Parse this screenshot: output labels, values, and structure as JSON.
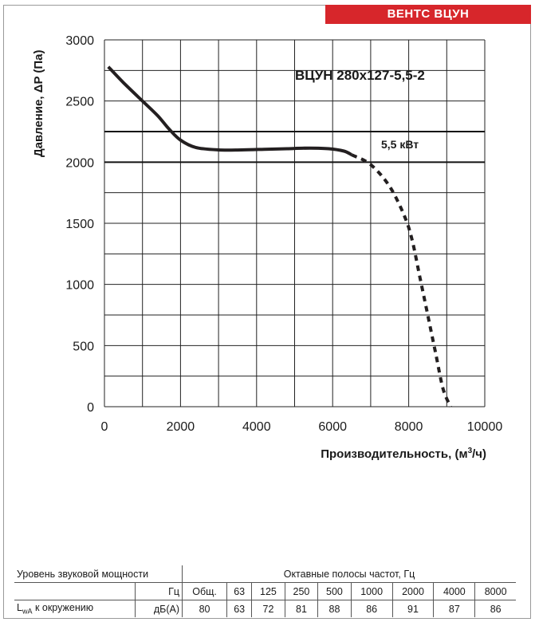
{
  "header": {
    "brand_label": "ВЕНТС ВЦУН"
  },
  "chart": {
    "model_label": "ВЦУН 280х127-5,5-2",
    "power_label": "5,5 кВт",
    "ylabel": "Давление, ΔP (Па)",
    "xlabel_main": "Производительность, (м",
    "xlabel_sup": "3",
    "xlabel_end": "/ч)"
  },
  "chart_data": {
    "type": "line",
    "title": "ВЦУН 280х127-5,5-2",
    "xlabel": "Производительность, (м3/ч)",
    "ylabel": "Давление, ΔP (Па)",
    "xlim": [
      0,
      10000
    ],
    "ylim": [
      0,
      3000
    ],
    "x_ticks": [
      0,
      2000,
      4000,
      6000,
      8000,
      10000
    ],
    "y_ticks": [
      0,
      500,
      1000,
      1500,
      2000,
      2500,
      3000
    ],
    "x_gridlines": [
      0,
      1000,
      2000,
      3000,
      4000,
      5000,
      6000,
      7000,
      8000,
      9000,
      10000
    ],
    "y_gridlines": [
      0,
      250,
      500,
      750,
      1000,
      1250,
      1500,
      1750,
      2000,
      2250,
      2500,
      2750,
      3000
    ],
    "grid": true,
    "power_band": {
      "y": [
        2000,
        2250
      ],
      "label": "5,5 кВт"
    },
    "series": [
      {
        "style": "solid",
        "x": [
          100,
          500,
          1000,
          1400,
          1700,
          2000,
          2400,
          3000,
          3600,
          4200,
          4800,
          5400,
          5900,
          6300,
          6500
        ],
        "y": [
          2780,
          2650,
          2500,
          2380,
          2270,
          2180,
          2120,
          2100,
          2100,
          2105,
          2110,
          2115,
          2110,
          2090,
          2060
        ]
      },
      {
        "style": "dashed",
        "x": [
          6500,
          7000,
          7500,
          7900,
          8100,
          8300,
          8500,
          8700,
          8900,
          9100
        ],
        "y": [
          2060,
          1980,
          1800,
          1550,
          1350,
          1050,
          750,
          450,
          150,
          0
        ]
      }
    ]
  },
  "sound_table": {
    "title": "Уровень звуковой мощности",
    "octave_title": "Октавные полосы частот, Гц",
    "hz_label": "Гц",
    "row_label_main": "L",
    "row_label_sub": "wA",
    "row_label_end": " к окружению",
    "unit": "дБ(A)",
    "headers": [
      "Общ.",
      "63",
      "125",
      "250",
      "500",
      "1000",
      "2000",
      "4000",
      "8000"
    ],
    "values": [
      "80",
      "63",
      "72",
      "81",
      "88",
      "86",
      "91",
      "87",
      "86"
    ]
  }
}
